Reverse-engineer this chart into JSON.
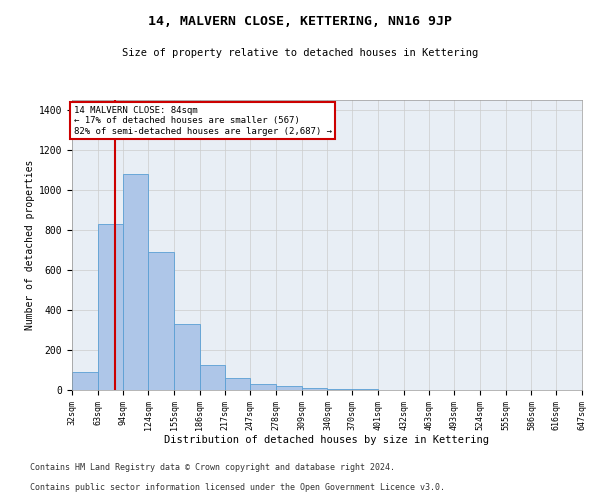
{
  "title": "14, MALVERN CLOSE, KETTERING, NN16 9JP",
  "subtitle": "Size of property relative to detached houses in Kettering",
  "xlabel": "Distribution of detached houses by size in Kettering",
  "ylabel": "Number of detached properties",
  "bin_edges": [
    32,
    63,
    94,
    124,
    155,
    186,
    217,
    247,
    278,
    309,
    340,
    370,
    401,
    432,
    463,
    493,
    524,
    555,
    586,
    616,
    647
  ],
  "bar_heights": [
    90,
    830,
    1080,
    690,
    330,
    125,
    60,
    30,
    20,
    10,
    5,
    3,
    2,
    2,
    1,
    1,
    0,
    0,
    0,
    0
  ],
  "bar_color": "#aec6e8",
  "bar_edge_color": "#5a9fd4",
  "property_line_x": 84,
  "annotation_text": "14 MALVERN CLOSE: 84sqm\n← 17% of detached houses are smaller (567)\n82% of semi-detached houses are larger (2,687) →",
  "annotation_box_color": "#cc0000",
  "ylim": [
    0,
    1450
  ],
  "yticks": [
    0,
    200,
    400,
    600,
    800,
    1000,
    1200,
    1400
  ],
  "grid_color": "#cccccc",
  "bg_color": "#e8eef5",
  "footnote_line1": "Contains HM Land Registry data © Crown copyright and database right 2024.",
  "footnote_line2": "Contains public sector information licensed under the Open Government Licence v3.0."
}
